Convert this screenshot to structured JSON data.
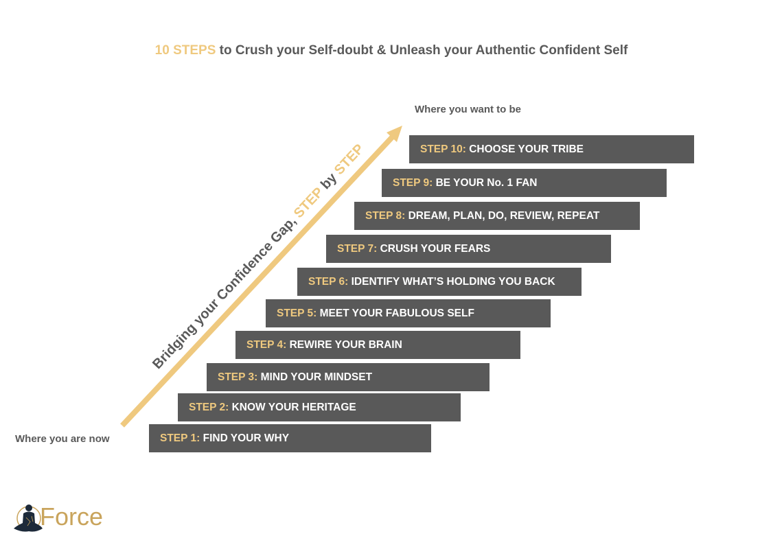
{
  "title": {
    "highlight": "10 STEPS",
    "rest": " to Crush your Self-doubt & Unleash your Authentic Confident Self"
  },
  "labels": {
    "start": "Where you are now",
    "end": "Where you want to be"
  },
  "arrow_text": {
    "part1": "Bridging your Confidence Gap, ",
    "highlight1": "STEP",
    "part2": " by ",
    "highlight2": "STEP"
  },
  "steps": [
    {
      "num": "STEP 1:",
      "text": " FIND YOUR WHY"
    },
    {
      "num": "STEP 2:",
      "text": " KNOW YOUR HERITAGE"
    },
    {
      "num": "STEP 3:",
      "text": " MIND YOUR MINDSET"
    },
    {
      "num": "STEP 4:",
      "text": " REWIRE YOUR BRAIN"
    },
    {
      "num": "STEP 5:",
      "text": " MEET YOUR FABULOUS SELF"
    },
    {
      "num": "STEP 6:",
      "text": " IDENTIFY WHAT’S HOLDING YOU BACK"
    },
    {
      "num": "STEP 7:",
      "text": " CRUSH YOUR FEARS"
    },
    {
      "num": "STEP 8:",
      "text": " DREAM, PLAN, DO, REVIEW, REPEAT"
    },
    {
      "num": "STEP 9:",
      "text": " BE YOUR No. 1 FAN"
    },
    {
      "num": "STEP 10:",
      "text": " CHOOSE YOUR TRIBE"
    }
  ],
  "logo": {
    "text": "GForce",
    "icon": "meditating-figure-icon"
  },
  "colors": {
    "accent": "#EFC97F",
    "bar": "#595959",
    "text": "#595959",
    "logo": "#C9A45C"
  }
}
